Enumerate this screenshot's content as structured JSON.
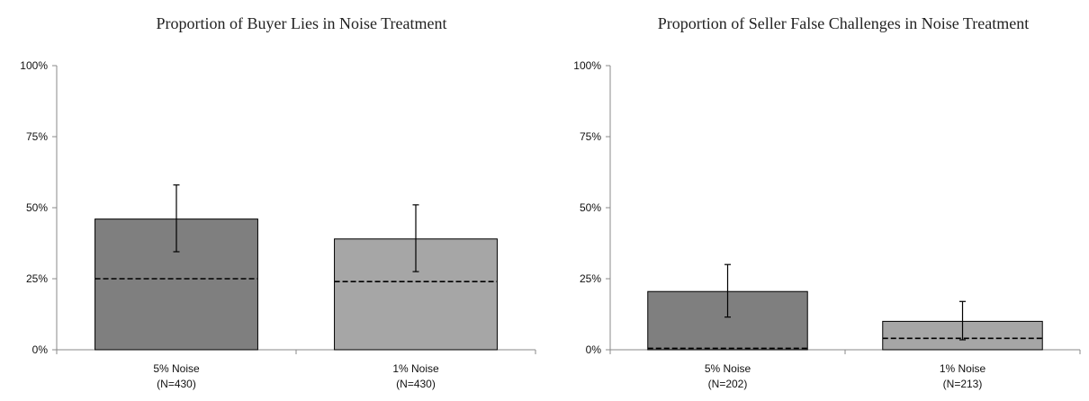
{
  "chart_data": [
    {
      "type": "bar",
      "title": "Proportion of Buyer Lies in Noise Treatment",
      "ylim": [
        0,
        100
      ],
      "yticks": [
        "0%",
        "25%",
        "50%",
        "75%",
        "100%"
      ],
      "ytick_values": [
        0,
        25,
        50,
        75,
        100
      ],
      "categories": [
        [
          "5% Noise",
          "(N=430)"
        ],
        [
          "1% Noise",
          "(N=430)"
        ]
      ],
      "values": [
        46,
        39
      ],
      "error_low": [
        34.5,
        27.5
      ],
      "error_high": [
        58,
        51
      ],
      "reference_line": [
        25,
        24
      ],
      "colors": [
        "#7f7f7f",
        "#a6a6a6"
      ]
    },
    {
      "type": "bar",
      "title": "Proportion of Seller False Challenges in Noise Treatment",
      "ylim": [
        0,
        100
      ],
      "yticks": [
        "0%",
        "25%",
        "50%",
        "75%",
        "100%"
      ],
      "ytick_values": [
        0,
        25,
        50,
        75,
        100
      ],
      "categories": [
        [
          "5% Noise",
          "(N=202)"
        ],
        [
          "1% Noise",
          "(N=213)"
        ]
      ],
      "values": [
        20.5,
        10
      ],
      "error_low": [
        11.5,
        3.5
      ],
      "error_high": [
        30,
        17
      ],
      "reference_line": [
        0.5,
        4
      ],
      "colors": [
        "#7f7f7f",
        "#a6a6a6"
      ]
    }
  ]
}
